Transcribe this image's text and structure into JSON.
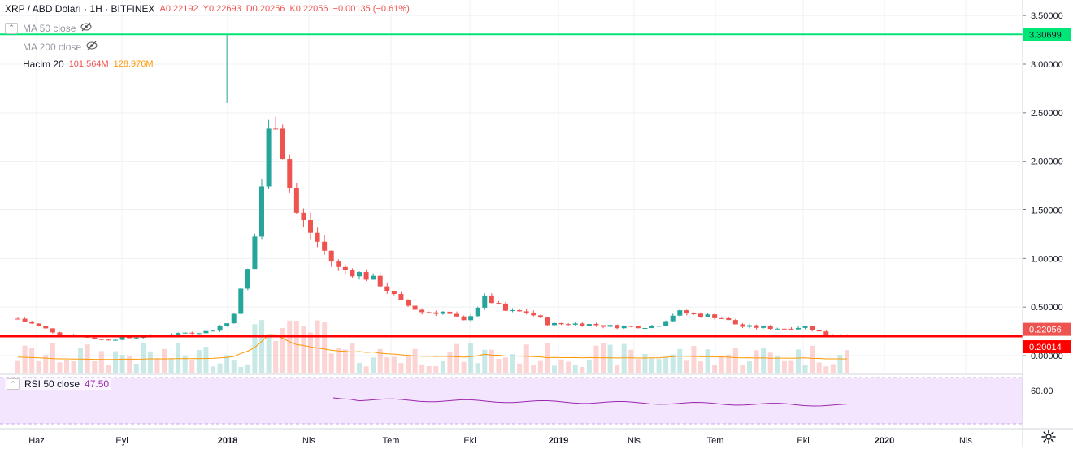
{
  "header": {
    "symbol_title": "XRP / ABD Doları · 1H · BITFINEX",
    "open": "A0.22192",
    "high": "Y0.22693",
    "low": "D0.20256",
    "close": "K0.22056",
    "change": "−0.00135 (−0.61%)"
  },
  "indicators": {
    "ma50_label": "MA 50 close",
    "ma200_label": "MA 200 close",
    "volume_label": "Hacim 20",
    "volume_value": "101.564M",
    "volume_ma_value": "128.976M",
    "rsi_label": "RSI 50 close",
    "rsi_value": "47.50",
    "eye_icon": "eye-hidden-icon"
  },
  "colors": {
    "up": "#26a69a",
    "down": "#ef5350",
    "green_line": "#00e676",
    "red_line": "#ff0000",
    "rsi_line": "#9c27b0",
    "rsi_bg": "#f3e5fd",
    "volume_ma": "#ff9800"
  },
  "chart_data": {
    "type": "candlestick",
    "y_axis_ticks": [
      "3.50000",
      "3.00000",
      "2.50000",
      "2.00000",
      "1.50000",
      "1.00000",
      "0.50000",
      "0.00000"
    ],
    "y_axis_values": [
      3.5,
      3.0,
      2.5,
      2.0,
      1.5,
      1.0,
      0.5,
      0.0
    ],
    "ylim": [
      -0.17,
      3.6
    ],
    "x_axis_ticks": [
      "Haz",
      "Eyl",
      "2018",
      "Nis",
      "Tem",
      "Eki",
      "2019",
      "Nis",
      "Tem",
      "Eki",
      "2020",
      "Nis"
    ],
    "x_axis_bold": [
      false,
      false,
      true,
      false,
      false,
      false,
      true,
      false,
      false,
      false,
      true,
      false
    ],
    "price_labels": {
      "green_level": "3.30699",
      "current": "0.22056",
      "red_level": "0.20014"
    },
    "horizontal_lines": [
      3.30699,
      0.20014
    ],
    "price_series": [
      0.38,
      0.3,
      0.22,
      0.2,
      0.16,
      0.18,
      0.2,
      0.22,
      0.24,
      0.25,
      0.35,
      1.0,
      2.6,
      1.5,
      1.2,
      0.9,
      0.85,
      0.75,
      0.55,
      0.45,
      0.45,
      0.35,
      0.6,
      0.45,
      0.45,
      0.32,
      0.33,
      0.32,
      0.3,
      0.3,
      0.3,
      0.45,
      0.42,
      0.4,
      0.3,
      0.29,
      0.28,
      0.3,
      0.22,
      0.22
    ],
    "spike_high": 3.31,
    "rsi": {
      "name": "RSI 50 close",
      "latest": 47.5,
      "ytick": "60.00"
    },
    "volume": {
      "name": "Hacim 20",
      "last": "101.564M",
      "ma": "128.976M"
    }
  }
}
